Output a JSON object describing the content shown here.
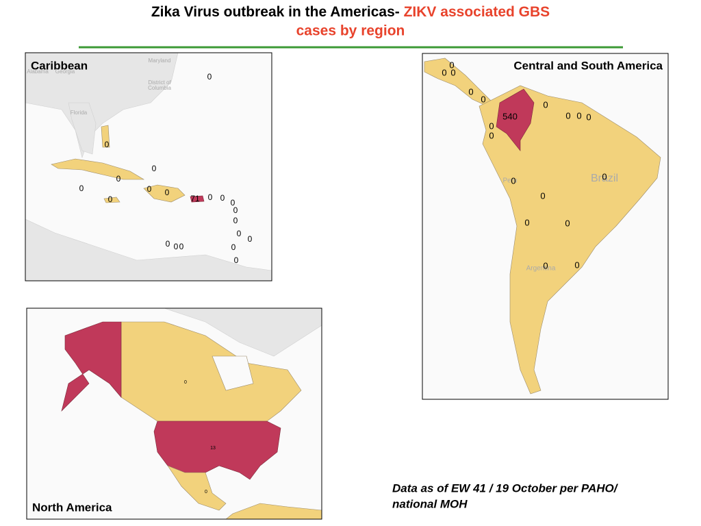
{
  "header": {
    "title_black": "Zika Virus outbreak in the Americas- ",
    "title_red": "ZIKV associated GBS",
    "title_red_2": "cases by region"
  },
  "panels": [
    {
      "label": "Caribbean",
      "place_names": [
        "Maryland",
        "District of",
        "Columbia",
        "Alabama",
        "Georgia",
        "Florida"
      ],
      "case_labels": [
        0,
        0,
        0,
        0,
        0,
        0,
        0,
        71,
        0,
        0,
        0,
        0,
        0,
        0,
        0,
        0,
        0,
        0,
        0,
        0,
        0
      ]
    },
    {
      "label": "Central and South America",
      "place_names": [
        "Brazil",
        "Argentina",
        "Peru"
      ],
      "case_labels": [
        0,
        0,
        0,
        0,
        0,
        0,
        0,
        0,
        0,
        540,
        0,
        0,
        0,
        0,
        0,
        0,
        0,
        0,
        0
      ]
    },
    {
      "label": "North America",
      "place_names": [],
      "case_labels": [
        0,
        13,
        0
      ]
    }
  ],
  "footnote": [
    "Data as of EW 41 / 19 October per PAHO/",
    "national MOH"
  ]
}
